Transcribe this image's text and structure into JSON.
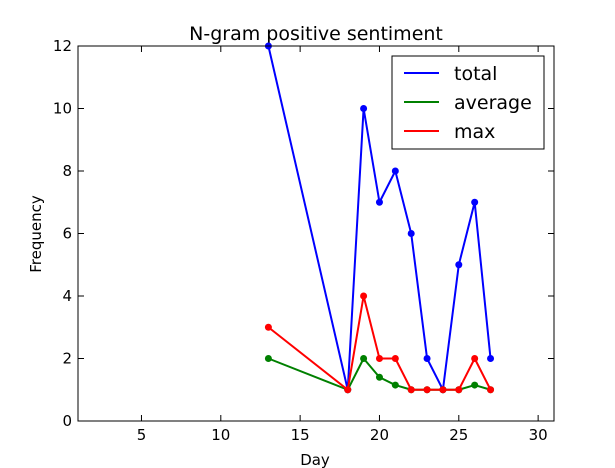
{
  "chart_data": {
    "type": "line",
    "title": "N-gram positive sentiment",
    "xlabel": "Day",
    "ylabel": "Frequency",
    "xlim": [
      1,
      31
    ],
    "ylim": [
      0,
      12
    ],
    "xticks": [
      5,
      10,
      15,
      20,
      25,
      30
    ],
    "yticks": [
      0,
      2,
      4,
      6,
      8,
      10,
      12
    ],
    "grid": false,
    "legend_position": "top-right",
    "series": [
      {
        "name": "total",
        "color": "#0000ff",
        "x": [
          13,
          18,
          19,
          20,
          21,
          22,
          23,
          24,
          25,
          26,
          27
        ],
        "y": [
          12,
          1,
          10,
          7,
          8,
          6,
          2,
          1,
          5,
          7,
          2
        ]
      },
      {
        "name": "average",
        "color": "#008000",
        "x": [
          13,
          18,
          19,
          20,
          21,
          22,
          23,
          24,
          25,
          26,
          27
        ],
        "y": [
          2,
          1,
          2,
          1.4,
          1.15,
          1,
          1,
          1,
          1,
          1.15,
          1
        ]
      },
      {
        "name": "max",
        "color": "#ff0000",
        "x": [
          13,
          18,
          19,
          20,
          21,
          22,
          23,
          24,
          25,
          26,
          27
        ],
        "y": [
          3,
          1,
          4,
          2,
          2,
          1,
          1,
          1,
          1,
          2,
          1
        ]
      }
    ]
  }
}
